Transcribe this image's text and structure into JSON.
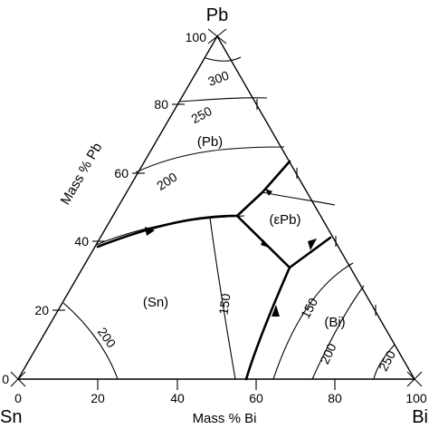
{
  "vertices": {
    "top": "Pb",
    "left": "Sn",
    "right": "Bi"
  },
  "axes": {
    "left_title": "Mass % Pb",
    "bottom_title": "Mass % Bi",
    "left_ticks": [
      "0",
      "20",
      "40",
      "60",
      "80",
      "100"
    ],
    "bottom_ticks": [
      "0",
      "20",
      "40",
      "60",
      "80",
      "100"
    ]
  },
  "regions": {
    "pb": "(Pb)",
    "epsilon_pb": "(εPb)",
    "sn": "(Sn)",
    "bi": "(Bi)"
  },
  "isotherms": {
    "t300": "300",
    "t250_top": "250",
    "t200_top": "200",
    "t150_mid": "150",
    "t150_right": "150",
    "t200_left": "200",
    "t200_right": "200",
    "t250_right": "250"
  }
}
